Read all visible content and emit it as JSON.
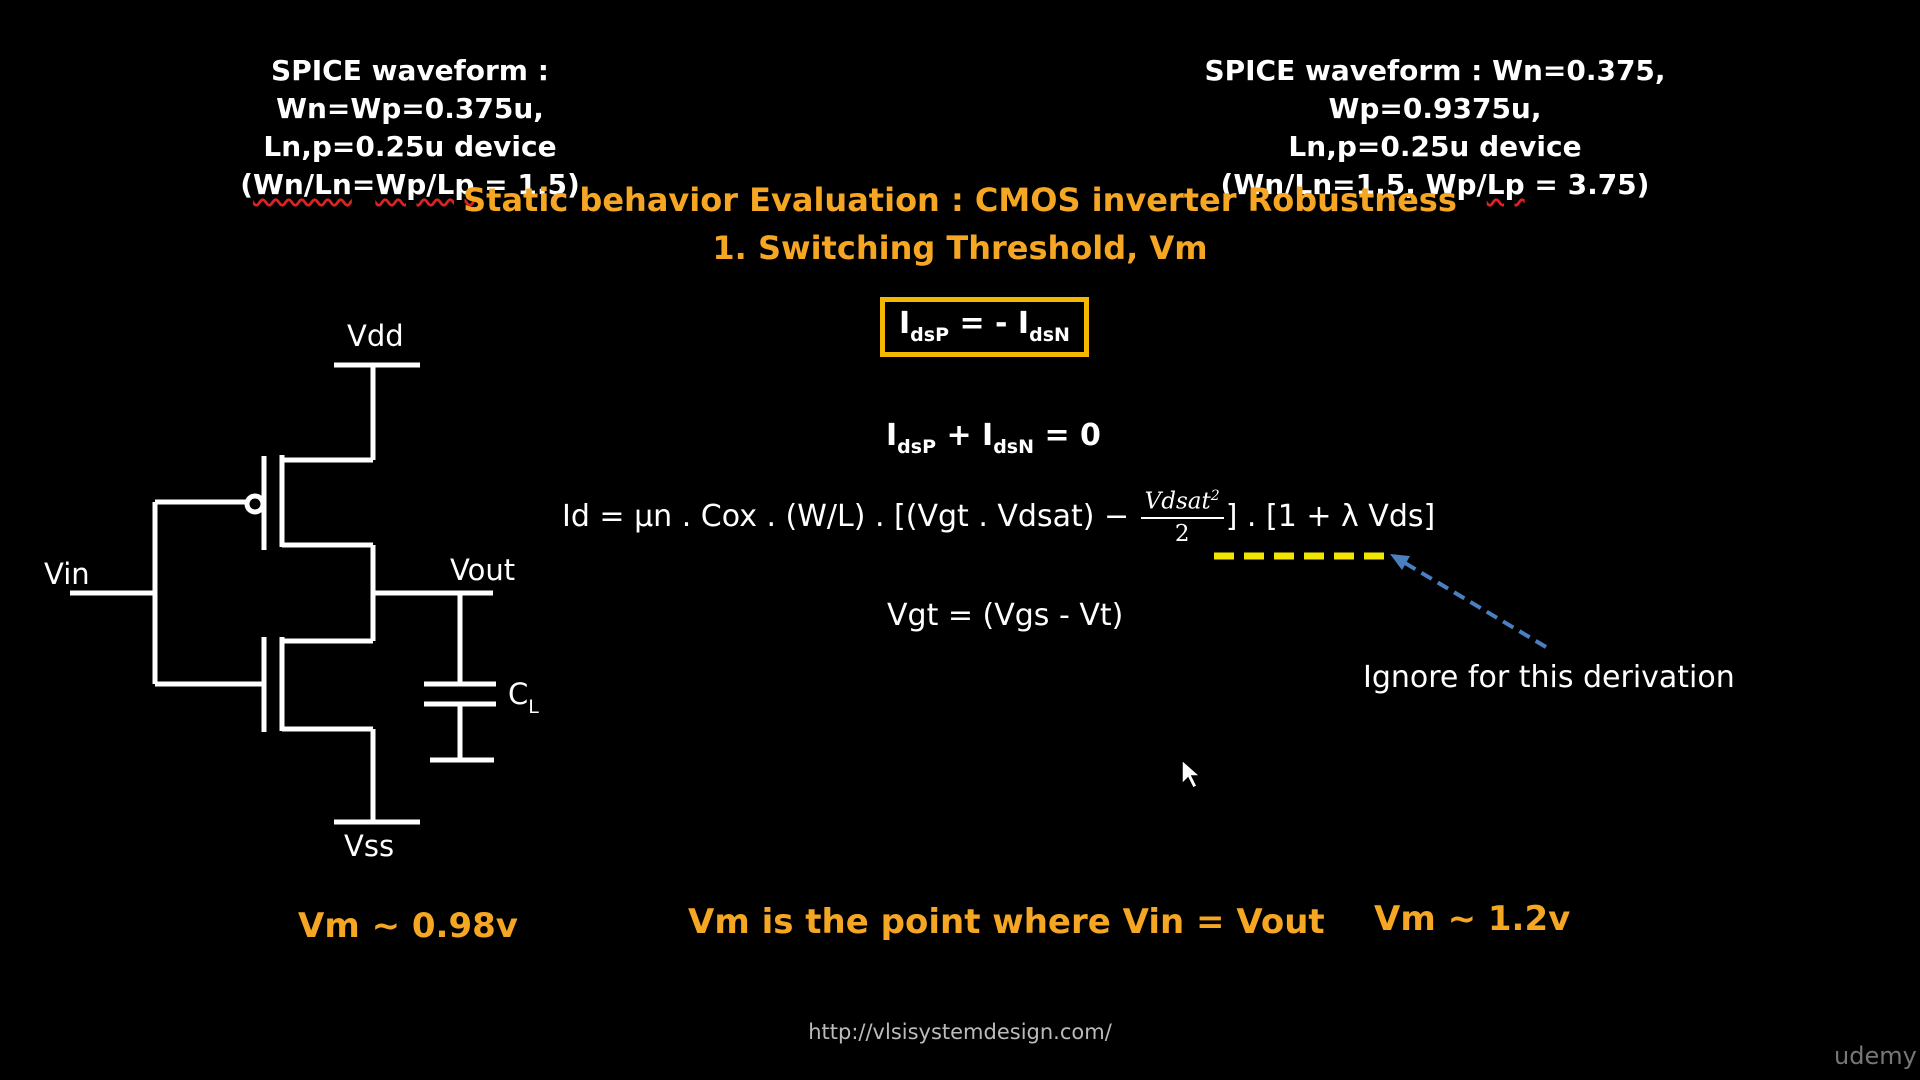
{
  "header": {
    "left": {
      "line1": "SPICE waveform : Wn=Wp=0.375u,",
      "line2": "Ln,p=0.25u device",
      "line3_prefix": "(",
      "line3_wavy1": "Wn/Ln",
      "line3_mid": "=",
      "line3_wavy2": "Wp/Lp",
      "line3_suffix": " = 1.5)"
    },
    "right": {
      "line1": "SPICE waveform : Wn=0.375, Wp=0.9375u,",
      "line2": "Ln,p=0.25u device",
      "line3_prefix": "(Wn/Ln=1.5, Wp/",
      "line3_wavy": "Lp",
      "line3_suffix": " = 3.75)"
    }
  },
  "title": {
    "line1": "Static behavior Evaluation : CMOS inverter Robustness",
    "line2": "1. Switching Threshold, Vm"
  },
  "equations": {
    "boxed": {
      "a": "I",
      "a_sub": "dsP",
      "mid": " = - I",
      "b_sub": "dsN"
    },
    "sum": {
      "a": "I",
      "a_sub": "dsP",
      "mid": " + I",
      "b_sub": "dsN",
      "end": " = 0"
    },
    "id_prefix": "Id = µn . Cox . (W/L) . [(Vgt . Vdsat)  −",
    "frac_num": "Vdsat",
    "frac_exp": "2",
    "frac_den": "2",
    "id_suffix": "] . [1 + λ Vds]",
    "vgt": "Vgt = (Vgs - Vt)"
  },
  "annotation": {
    "text": "Ignore for this derivation",
    "dash_color": "#f2e600",
    "arrow_color": "#4a7fc0"
  },
  "circuit": {
    "vdd": "Vdd",
    "vin": "Vin",
    "vout": "Vout",
    "vss": "Vss",
    "cl": "C",
    "cl_sub": "L"
  },
  "results": {
    "left": "Vm ~ 0.98v",
    "center": "Vm is the point where Vin = Vout",
    "right": "Vm ~ 1.2v"
  },
  "footer": {
    "url": "http://vlsisystemdesign.com/",
    "brand": "udemy"
  },
  "colors": {
    "accent": "#f5a623",
    "box": "#f5b800",
    "text": "#ffffff",
    "background": "#000000"
  }
}
